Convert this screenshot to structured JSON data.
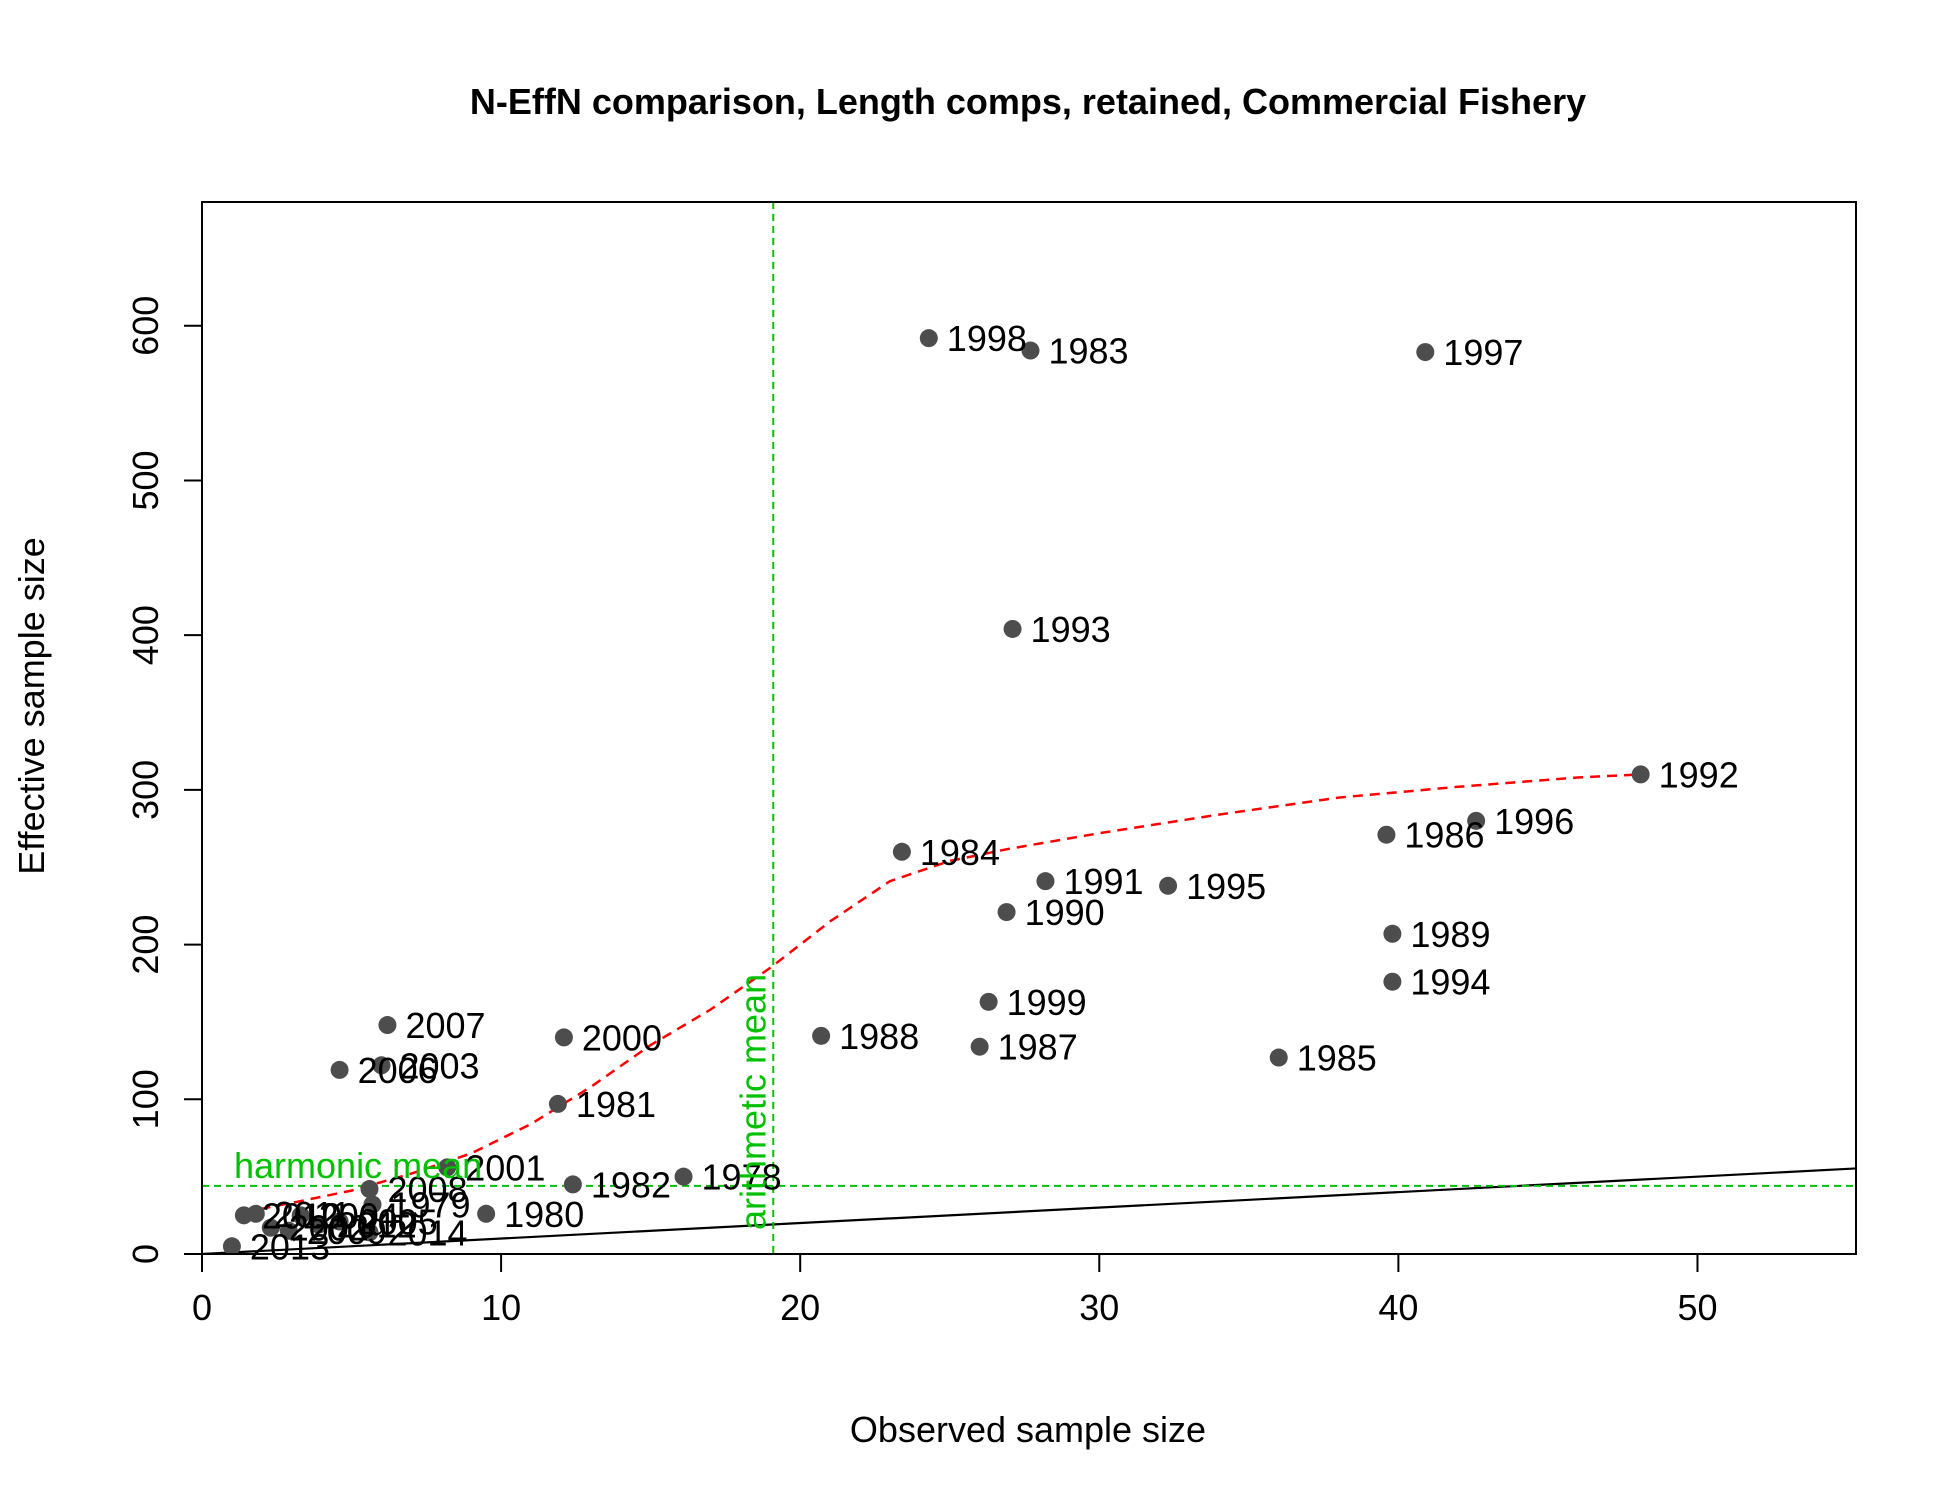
{
  "chart_data": {
    "type": "scatter",
    "title": "N-EffN comparison, Length comps, retained, Commercial Fishery",
    "xlabel": "Observed sample size",
    "ylabel": "Effective sample size",
    "xlim": [
      0,
      55.3
    ],
    "ylim": [
      0,
      680
    ],
    "xticks": [
      0,
      10,
      20,
      30,
      40,
      50
    ],
    "yticks": [
      0,
      100,
      200,
      300,
      400,
      500,
      600
    ],
    "colors": {
      "points": "#4d4d4d",
      "smoother": "#ff0000",
      "reference": "#00c000",
      "identity": "#000000"
    },
    "points": [
      {
        "year": "1978",
        "x": 16.1,
        "y": 50
      },
      {
        "year": "1979",
        "x": 5.7,
        "y": 32
      },
      {
        "year": "1980",
        "x": 9.5,
        "y": 26
      },
      {
        "year": "1981",
        "x": 11.9,
        "y": 97
      },
      {
        "year": "1982",
        "x": 12.4,
        "y": 45
      },
      {
        "year": "1983",
        "x": 27.7,
        "y": 584
      },
      {
        "year": "1984",
        "x": 23.4,
        "y": 260
      },
      {
        "year": "1985",
        "x": 36.0,
        "y": 127
      },
      {
        "year": "1986",
        "x": 39.6,
        "y": 271
      },
      {
        "year": "1987",
        "x": 26.0,
        "y": 134
      },
      {
        "year": "1988",
        "x": 20.7,
        "y": 141
      },
      {
        "year": "1989",
        "x": 39.8,
        "y": 207
      },
      {
        "year": "1990",
        "x": 26.9,
        "y": 221
      },
      {
        "year": "1991",
        "x": 28.2,
        "y": 241
      },
      {
        "year": "1992",
        "x": 48.1,
        "y": 310
      },
      {
        "year": "1993",
        "x": 27.1,
        "y": 404
      },
      {
        "year": "1994",
        "x": 39.8,
        "y": 176
      },
      {
        "year": "1995",
        "x": 32.3,
        "y": 238
      },
      {
        "year": "1996",
        "x": 42.6,
        "y": 280
      },
      {
        "year": "1997",
        "x": 40.9,
        "y": 583
      },
      {
        "year": "1998",
        "x": 24.3,
        "y": 592
      },
      {
        "year": "1999",
        "x": 26.3,
        "y": 163
      },
      {
        "year": "2000",
        "x": 12.1,
        "y": 140
      },
      {
        "year": "2001",
        "x": 8.2,
        "y": 56
      },
      {
        "year": "2002",
        "x": 2.3,
        "y": 17
      },
      {
        "year": "2003",
        "x": 6.0,
        "y": 122
      },
      {
        "year": "2004",
        "x": 3.3,
        "y": 25
      },
      {
        "year": "2005",
        "x": 4.6,
        "y": 21
      },
      {
        "year": "2006",
        "x": 4.6,
        "y": 119
      },
      {
        "year": "2007",
        "x": 6.2,
        "y": 148
      },
      {
        "year": "2008",
        "x": 5.6,
        "y": 42
      },
      {
        "year": "2009",
        "x": 2.9,
        "y": 15
      },
      {
        "year": "2010",
        "x": 1.4,
        "y": 25
      },
      {
        "year": "2011",
        "x": 1.8,
        "y": 26
      },
      {
        "year": "2012",
        "x": 3.9,
        "y": 19
      },
      {
        "year": "2013",
        "x": 1.0,
        "y": 5
      },
      {
        "year": "2014",
        "x": 5.6,
        "y": 14
      }
    ],
    "smoother": {
      "x": [
        1.4,
        3,
        5,
        7,
        9,
        11,
        13,
        15,
        17,
        19,
        21,
        23,
        25,
        27,
        30,
        34,
        38,
        42,
        46,
        48.1
      ],
      "y": [
        27,
        33,
        41,
        52,
        65,
        84,
        108,
        135,
        158,
        185,
        215,
        241,
        254,
        262,
        272,
        284,
        295,
        302,
        308,
        310
      ]
    },
    "identity_line": {
      "x": [
        0,
        55.3
      ],
      "y": [
        0,
        55.3
      ]
    },
    "harmonic_mean": {
      "value": 44,
      "label": "harmonic mean"
    },
    "arithmetic_mean": {
      "value": 19.1,
      "label": "arithmetic mean"
    }
  }
}
